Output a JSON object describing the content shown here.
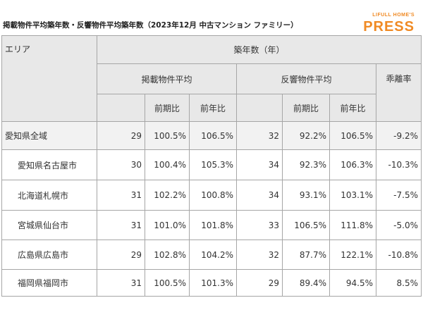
{
  "header": {
    "title": "掲載物件平均築年数・反響物件平均築年数（2023年12月 中古マンション ファミリー）",
    "logo_top": "LIFULL HOME'S",
    "logo_main": "PRESS"
  },
  "table": {
    "header": {
      "area": "エリア",
      "age": "築年数（年）",
      "listed": "掲載物件平均",
      "inquired": "反響物件平均",
      "gap": "乖離率",
      "qoq_1": "前期比",
      "yoy_1": "前年比",
      "qoq_2": "前期比",
      "yoy_2": "前年比"
    },
    "rows": [
      [
        "愛知県全域",
        "29",
        "100.5%",
        "106.5%",
        "32",
        "92.2%",
        "106.5%",
        "-9.2%"
      ],
      [
        "愛知県名古屋市",
        "30",
        "100.4%",
        "105.3%",
        "34",
        "92.3%",
        "106.3%",
        "-10.3%"
      ],
      [
        "北海道札幌市",
        "31",
        "102.2%",
        "100.8%",
        "34",
        "93.1%",
        "103.1%",
        "-7.5%"
      ],
      [
        "宮城県仙台市",
        "31",
        "101.0%",
        "101.8%",
        "33",
        "106.5%",
        "111.8%",
        "-5.0%"
      ],
      [
        "広島県広島市",
        "29",
        "102.8%",
        "104.2%",
        "32",
        "87.7%",
        "122.1%",
        "-10.8%"
      ],
      [
        "福岡県福岡市",
        "31",
        "100.5%",
        "101.3%",
        "29",
        "89.4%",
        "94.5%",
        "8.5%"
      ]
    ]
  }
}
